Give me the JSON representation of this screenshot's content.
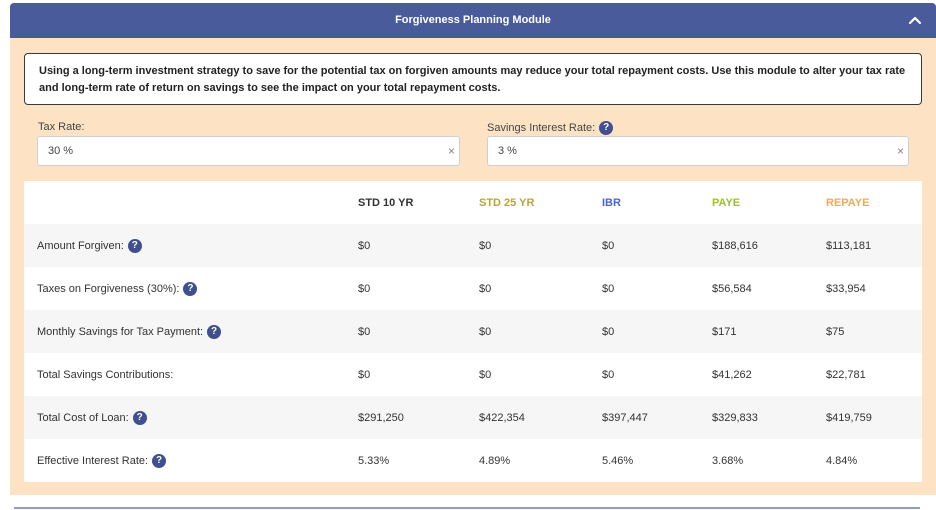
{
  "module": {
    "title": "Forgiveness Planning Module",
    "collapse_icon": "chevron-up-icon",
    "info_text": "Using a long-term investment strategy to save for the potential tax on forgiven amounts may reduce your total repayment costs. Use this module to alter your tax rate and long-term rate of return on savings to see the impact on your total repayment costs."
  },
  "fields": {
    "tax_rate": {
      "label": "Tax Rate:",
      "value": "30 %"
    },
    "savings_rate": {
      "label": "Savings Interest Rate:",
      "value": "3 %",
      "help": "?"
    }
  },
  "colors": {
    "header_bg": "#4a5b9c",
    "panel_bg": "#fde3c3",
    "std10": "#333333",
    "std25": "#b9a43a",
    "ibr": "#4a63c8",
    "paye": "#9bc21f",
    "repaye": "#f0a85a"
  },
  "table": {
    "columns": [
      "STD 10 YR",
      "STD 25 YR",
      "IBR",
      "PAYE",
      "REPAYE"
    ],
    "rows": [
      {
        "label": "Amount Forgiven:",
        "help": "?",
        "values": [
          "$0",
          "$0",
          "$0",
          "$188,616",
          "$113,181"
        ]
      },
      {
        "label": "Taxes on Forgiveness (30%):",
        "help": "?",
        "values": [
          "$0",
          "$0",
          "$0",
          "$56,584",
          "$33,954"
        ]
      },
      {
        "label": "Monthly Savings for Tax Payment:",
        "help": "?",
        "values": [
          "$0",
          "$0",
          "$0",
          "$171",
          "$75"
        ]
      },
      {
        "label": "Total Savings Contributions:",
        "help": "",
        "values": [
          "$0",
          "$0",
          "$0",
          "$41,262",
          "$22,781"
        ]
      },
      {
        "label": "Total Cost of Loan:",
        "help": "?",
        "values": [
          "$291,250",
          "$422,354",
          "$397,447",
          "$329,833",
          "$419,759"
        ]
      },
      {
        "label": "Effective Interest Rate:",
        "help": "?",
        "values": [
          "5.33%",
          "4.89%",
          "5.46%",
          "3.68%",
          "4.84%"
        ]
      }
    ]
  }
}
